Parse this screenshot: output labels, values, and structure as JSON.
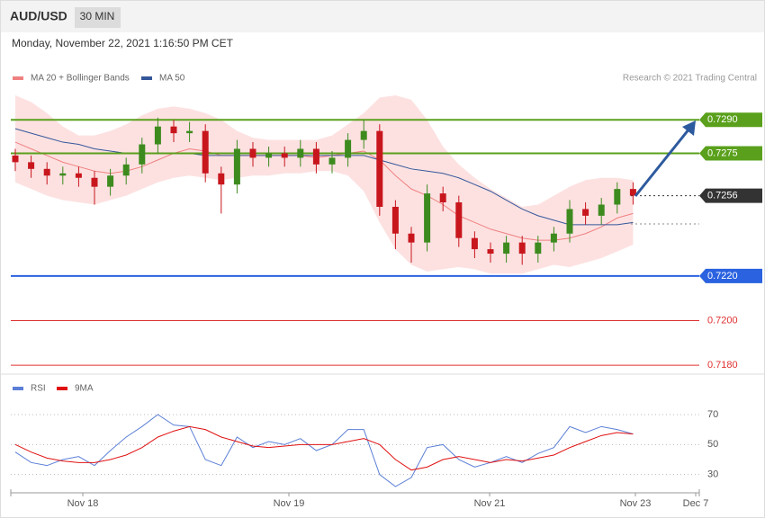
{
  "chart_data": [
    {
      "type": "candlestick",
      "title": "AUD/USD",
      "timeframe": "30 MIN",
      "subtitle": "Monday, November 22, 2021 1:16:50 PM CET",
      "source": "Research © 2021 Trading Central",
      "ylim": [
        0.7176,
        0.7303
      ],
      "up_color": "#3d8b1e",
      "down_color": "#c8161d",
      "open": [
        0.7274,
        0.7271,
        0.7268,
        0.7265,
        0.7266,
        0.7264,
        0.726,
        0.7265,
        0.727,
        0.7279,
        0.7287,
        0.7284,
        0.7285,
        0.7266,
        0.7261,
        0.7277,
        0.7273,
        0.7275,
        0.7273,
        0.7277,
        0.727,
        0.7273,
        0.7281,
        0.7285,
        0.7251,
        0.7239,
        0.7235,
        0.7257,
        0.7253,
        0.7237,
        0.7232,
        0.723,
        0.7235,
        0.723,
        0.7235,
        0.7239,
        0.725,
        0.7247,
        0.7252,
        0.7259
      ],
      "high": [
        0.7277,
        0.7274,
        0.7271,
        0.7269,
        0.7269,
        0.7267,
        0.7268,
        0.7273,
        0.7282,
        0.7291,
        0.729,
        0.7289,
        0.7288,
        0.7269,
        0.7281,
        0.728,
        0.7278,
        0.7278,
        0.7281,
        0.728,
        0.7276,
        0.7284,
        0.729,
        0.7288,
        0.7254,
        0.7242,
        0.7261,
        0.726,
        0.7256,
        0.724,
        0.7235,
        0.7238,
        0.7238,
        0.7238,
        0.7242,
        0.7254,
        0.7253,
        0.7255,
        0.7262,
        0.7262
      ],
      "low": [
        0.7267,
        0.7264,
        0.7261,
        0.7261,
        0.726,
        0.7252,
        0.7256,
        0.7261,
        0.7266,
        0.7275,
        0.728,
        0.728,
        0.7262,
        0.7248,
        0.7257,
        0.7269,
        0.7269,
        0.7269,
        0.7269,
        0.7266,
        0.7266,
        0.7269,
        0.7277,
        0.7247,
        0.7232,
        0.7226,
        0.7231,
        0.7249,
        0.7233,
        0.7228,
        0.7226,
        0.7226,
        0.7225,
        0.7226,
        0.7231,
        0.7235,
        0.7243,
        0.7243,
        0.7248,
        0.7252
      ],
      "close": [
        0.7271,
        0.7268,
        0.7265,
        0.7266,
        0.7264,
        0.726,
        0.7265,
        0.727,
        0.7279,
        0.7287,
        0.7284,
        0.7285,
        0.7266,
        0.7261,
        0.7277,
        0.7273,
        0.7275,
        0.7273,
        0.7277,
        0.727,
        0.7273,
        0.7281,
        0.7285,
        0.7251,
        0.7239,
        0.7235,
        0.7257,
        0.7253,
        0.7237,
        0.7232,
        0.723,
        0.7235,
        0.723,
        0.7235,
        0.7239,
        0.725,
        0.7247,
        0.7252,
        0.7259,
        0.7256
      ],
      "series": [
        {
          "name": "MA 20 + Bollinger Bands",
          "color": "#f08080",
          "band_color": "#fde1e1",
          "values": [
            0.728,
            0.7277,
            0.7274,
            0.7271,
            0.7269,
            0.7267,
            0.7266,
            0.7267,
            0.7269,
            0.7272,
            0.7275,
            0.7277,
            0.7276,
            0.7274,
            0.7274,
            0.7274,
            0.7274,
            0.7274,
            0.7274,
            0.7273,
            0.7274,
            0.7275,
            0.7276,
            0.7272,
            0.7265,
            0.7259,
            0.7256,
            0.7252,
            0.7247,
            0.7244,
            0.7241,
            0.7239,
            0.7237,
            0.7236,
            0.7236,
            0.7237,
            0.7239,
            0.7242,
            0.7246,
            0.7248
          ],
          "upper": [
            0.7301,
            0.7298,
            0.7293,
            0.7287,
            0.7283,
            0.7283,
            0.7285,
            0.7288,
            0.7292,
            0.7295,
            0.7296,
            0.7295,
            0.7293,
            0.729,
            0.7285,
            0.7282,
            0.7281,
            0.7281,
            0.7281,
            0.7281,
            0.7283,
            0.7288,
            0.7293,
            0.73,
            0.7301,
            0.7299,
            0.729,
            0.7278,
            0.727,
            0.7264,
            0.7259,
            0.7255,
            0.7251,
            0.7252,
            0.7256,
            0.726,
            0.7263,
            0.7264,
            0.7264,
            0.7263
          ],
          "lower": [
            0.7262,
            0.7259,
            0.7256,
            0.7254,
            0.7253,
            0.7252,
            0.7254,
            0.7256,
            0.7259,
            0.7262,
            0.7264,
            0.7265,
            0.7264,
            0.7263,
            0.7264,
            0.7265,
            0.7265,
            0.7266,
            0.7266,
            0.7267,
            0.7267,
            0.7265,
            0.7258,
            0.7244,
            0.7232,
            0.7225,
            0.7222,
            0.7223,
            0.7224,
            0.7223,
            0.7221,
            0.7221,
            0.7221,
            0.7223,
            0.7225,
            0.7224,
            0.7226,
            0.7228,
            0.7231,
            0.7234
          ]
        },
        {
          "name": "MA 50",
          "color": "#34579a",
          "values": [
            0.7286,
            0.7284,
            0.7282,
            0.728,
            0.7279,
            0.7277,
            0.7276,
            0.7275,
            0.7275,
            0.7275,
            0.7275,
            0.7275,
            0.7274,
            0.7274,
            0.7274,
            0.7274,
            0.7274,
            0.7274,
            0.7274,
            0.7274,
            0.7274,
            0.7274,
            0.7274,
            0.7272,
            0.727,
            0.7268,
            0.7267,
            0.7266,
            0.7264,
            0.7261,
            0.7258,
            0.7254,
            0.725,
            0.7247,
            0.7245,
            0.7243,
            0.7243,
            0.7243,
            0.7243,
            0.7244
          ]
        }
      ],
      "price_levels": [
        {
          "value": 0.729,
          "label": "0.7290",
          "color": "#5aa01c",
          "boxed": true,
          "dotted": false
        },
        {
          "value": 0.7275,
          "label": "0.7275",
          "color": "#5aa01c",
          "boxed": true,
          "dotted": false
        },
        {
          "value": 0.7256,
          "label": "0.7256",
          "color": "#333333",
          "boxed": true,
          "dotted": true
        },
        {
          "value": 0.722,
          "label": "0.7220",
          "color": "#2a62e0",
          "boxed": true,
          "dotted": false
        },
        {
          "value": 0.72,
          "label": "0.7200",
          "color": "#e03030",
          "boxed": false,
          "dotted": false
        },
        {
          "value": 0.718,
          "label": "0.7180",
          "color": "#e03030",
          "boxed": false,
          "dotted": false
        }
      ]
    },
    {
      "type": "line",
      "ylim": [
        19,
        79
      ],
      "yticks": [
        70,
        50,
        30
      ],
      "grid": true,
      "x_labels": [
        "Nov 18",
        "Nov 19",
        "Nov 21",
        "Nov 23",
        "Dec 7"
      ],
      "series": [
        {
          "name": "RSI",
          "color": "#5b7fd6",
          "values": [
            45,
            38,
            36,
            40,
            42,
            36,
            46,
            55,
            62,
            70,
            63,
            62,
            40,
            36,
            55,
            48,
            52,
            50,
            54,
            46,
            50,
            60,
            60,
            30,
            22,
            28,
            48,
            50,
            40,
            35,
            38,
            42,
            38,
            44,
            48,
            62,
            58,
            62,
            60,
            57
          ]
        },
        {
          "name": "9MA",
          "color": "#e01010",
          "values": [
            50,
            45,
            41,
            39,
            38,
            38,
            40,
            43,
            48,
            55,
            59,
            62,
            60,
            55,
            52,
            49,
            48,
            49,
            50,
            50,
            50,
            52,
            54,
            50,
            40,
            33,
            35,
            40,
            42,
            40,
            38,
            40,
            39,
            41,
            43,
            48,
            52,
            56,
            58,
            57
          ]
        }
      ]
    }
  ]
}
